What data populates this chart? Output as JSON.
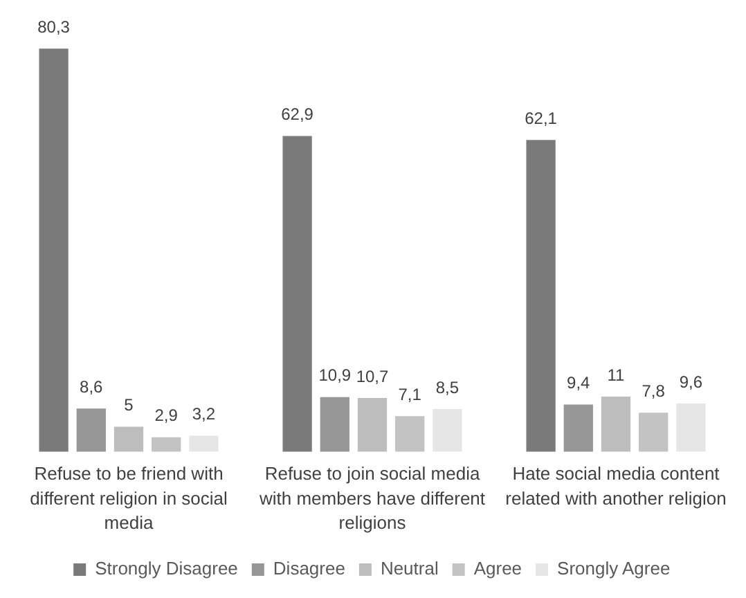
{
  "chart_data": {
    "type": "bar",
    "categories": [
      "Refuse to be friend with different religion in social media",
      "Refuse to join social media with members have different religions",
      "Hate social media content related with another religion"
    ],
    "series": [
      {
        "name": "Strongly Disagree",
        "color": "#7a7a7a",
        "values": [
          80.3,
          62.9,
          62.1
        ],
        "value_labels": [
          "80,3",
          "62,9",
          "62,1"
        ]
      },
      {
        "name": "Disagree",
        "color": "#969696",
        "values": [
          8.6,
          10.9,
          9.4
        ],
        "value_labels": [
          "8,6",
          "10,9",
          "9,4"
        ]
      },
      {
        "name": "Neutral",
        "color": "#bdbdbd",
        "values": [
          5,
          10.7,
          11
        ],
        "value_labels": [
          "5",
          "10,7",
          "11"
        ]
      },
      {
        "name": "Agree",
        "color": "#c3c3c3",
        "values": [
          2.9,
          7.1,
          7.8
        ],
        "value_labels": [
          "2,9",
          "7,1",
          "7,8"
        ]
      },
      {
        "name": "Srongly Agree",
        "color": "#e6e6e6",
        "values": [
          3.2,
          8.5,
          9.6
        ],
        "value_labels": [
          "3,2",
          "8,5",
          "9,6"
        ]
      }
    ],
    "legend": "bottom",
    "tick_labels": "x"
  }
}
